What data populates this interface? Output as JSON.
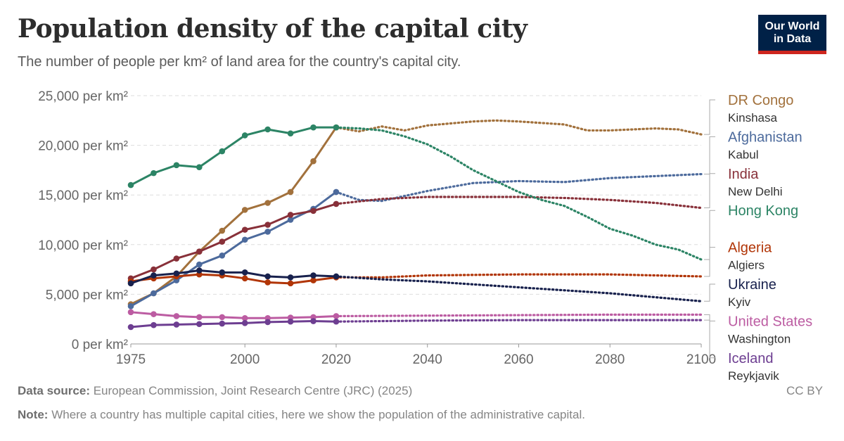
{
  "header": {
    "title": "Population density of the capital city",
    "subtitle": "The number of people per km² of land area for the country's capital city.",
    "logo_line1": "Our World",
    "logo_line2": "in Data"
  },
  "footer": {
    "source_label": "Data source:",
    "source_text": "European Commission, Joint Research Centre (JRC) (2025)",
    "note_label": "Note:",
    "note_text": "Where a country has multiple capital cities, here we show the population of the administrative capital.",
    "license": "CC BY"
  },
  "chart_data": {
    "type": "line",
    "title": "Population density of the capital city",
    "subtitle": "The number of people per km² of land area for the country's capital city.",
    "x_ticks": [
      "1975",
      "2000",
      "2020",
      "2040",
      "2060",
      "2080",
      "2100"
    ],
    "y_ticks": [
      "0 per km²",
      "5,000 per km²",
      "10,000 per km²",
      "15,000 per km²",
      "20,000 per km²",
      "25,000 per km²"
    ],
    "xlim": [
      1975,
      2100
    ],
    "ylim": [
      0,
      25000
    ],
    "grid": "horizontal dashed",
    "legend": "right, labels at line ends",
    "projection_start": 2020,
    "series": [
      {
        "name": "DR Congo",
        "city": "Kinshasa",
        "color": "#a2713c",
        "historical": [
          [
            1975,
            4000
          ],
          [
            1980,
            5100
          ],
          [
            1985,
            6800
          ],
          [
            1990,
            9300
          ],
          [
            1995,
            11400
          ],
          [
            2000,
            13500
          ],
          [
            2005,
            14200
          ],
          [
            2010,
            15300
          ],
          [
            2015,
            18400
          ],
          [
            2020,
            21800
          ]
        ],
        "projected": [
          [
            2020,
            21800
          ],
          [
            2025,
            21400
          ],
          [
            2030,
            21900
          ],
          [
            2035,
            21500
          ],
          [
            2040,
            22000
          ],
          [
            2050,
            22400
          ],
          [
            2055,
            22500
          ],
          [
            2060,
            22400
          ],
          [
            2070,
            22100
          ],
          [
            2075,
            21500
          ],
          [
            2080,
            21500
          ],
          [
            2090,
            21700
          ],
          [
            2095,
            21600
          ],
          [
            2100,
            21100
          ]
        ]
      },
      {
        "name": "Afghanistan",
        "city": "Kabul",
        "color": "#4c6a9c",
        "historical": [
          [
            1975,
            3800
          ],
          [
            1980,
            5100
          ],
          [
            1985,
            6400
          ],
          [
            1990,
            8000
          ],
          [
            1995,
            8900
          ],
          [
            2000,
            10500
          ],
          [
            2005,
            11300
          ],
          [
            2010,
            12500
          ],
          [
            2015,
            13600
          ],
          [
            2020,
            15300
          ]
        ],
        "projected": [
          [
            2020,
            15300
          ],
          [
            2025,
            14500
          ],
          [
            2030,
            14400
          ],
          [
            2035,
            14900
          ],
          [
            2040,
            15400
          ],
          [
            2050,
            16200
          ],
          [
            2060,
            16400
          ],
          [
            2070,
            16300
          ],
          [
            2080,
            16700
          ],
          [
            2090,
            16900
          ],
          [
            2100,
            17100
          ]
        ]
      },
      {
        "name": "India",
        "city": "New Delhi",
        "color": "#883039",
        "historical": [
          [
            1975,
            6600
          ],
          [
            1980,
            7500
          ],
          [
            1985,
            8600
          ],
          [
            1990,
            9300
          ],
          [
            1995,
            10300
          ],
          [
            2000,
            11500
          ],
          [
            2005,
            12000
          ],
          [
            2010,
            13000
          ],
          [
            2015,
            13400
          ],
          [
            2020,
            14100
          ]
        ],
        "projected": [
          [
            2020,
            14100
          ],
          [
            2030,
            14600
          ],
          [
            2040,
            14800
          ],
          [
            2060,
            14800
          ],
          [
            2070,
            14700
          ],
          [
            2080,
            14500
          ],
          [
            2090,
            14200
          ],
          [
            2100,
            13700
          ]
        ]
      },
      {
        "name": "Hong Kong",
        "city": "",
        "color": "#2c8465",
        "historical": [
          [
            1975,
            16000
          ],
          [
            1980,
            17200
          ],
          [
            1985,
            18000
          ],
          [
            1990,
            17800
          ],
          [
            1995,
            19400
          ],
          [
            2000,
            21000
          ],
          [
            2005,
            21600
          ],
          [
            2010,
            21200
          ],
          [
            2015,
            21800
          ],
          [
            2020,
            21800
          ]
        ],
        "projected": [
          [
            2020,
            21800
          ],
          [
            2025,
            21700
          ],
          [
            2030,
            21500
          ],
          [
            2035,
            20900
          ],
          [
            2040,
            20100
          ],
          [
            2045,
            18900
          ],
          [
            2050,
            17500
          ],
          [
            2055,
            16400
          ],
          [
            2060,
            15300
          ],
          [
            2065,
            14500
          ],
          [
            2070,
            13900
          ],
          [
            2075,
            12800
          ],
          [
            2080,
            11600
          ],
          [
            2085,
            10900
          ],
          [
            2090,
            10000
          ],
          [
            2095,
            9500
          ],
          [
            2100,
            8500
          ]
        ]
      },
      {
        "name": "Algeria",
        "city": "Algiers",
        "color": "#b13507",
        "historical": [
          [
            1975,
            6300
          ],
          [
            1980,
            6600
          ],
          [
            1985,
            6800
          ],
          [
            1990,
            7000
          ],
          [
            1995,
            6900
          ],
          [
            2000,
            6600
          ],
          [
            2005,
            6200
          ],
          [
            2010,
            6100
          ],
          [
            2015,
            6400
          ],
          [
            2020,
            6700
          ]
        ],
        "projected": [
          [
            2020,
            6700
          ],
          [
            2030,
            6700
          ],
          [
            2040,
            6900
          ],
          [
            2060,
            7000
          ],
          [
            2080,
            7000
          ],
          [
            2090,
            6900
          ],
          [
            2100,
            6800
          ]
        ]
      },
      {
        "name": "Ukraine",
        "city": "Kyiv",
        "color": "#18214d",
        "historical": [
          [
            1975,
            6100
          ],
          [
            1980,
            6900
          ],
          [
            1985,
            7100
          ],
          [
            1990,
            7400
          ],
          [
            1995,
            7200
          ],
          [
            2000,
            7200
          ],
          [
            2005,
            6800
          ],
          [
            2010,
            6700
          ],
          [
            2015,
            6900
          ],
          [
            2020,
            6800
          ]
        ],
        "projected": [
          [
            2020,
            6800
          ],
          [
            2030,
            6500
          ],
          [
            2040,
            6300
          ],
          [
            2050,
            6000
          ],
          [
            2060,
            5700
          ],
          [
            2070,
            5400
          ],
          [
            2080,
            5100
          ],
          [
            2090,
            4700
          ],
          [
            2100,
            4300
          ]
        ]
      },
      {
        "name": "United States",
        "city": "Washington",
        "color": "#bc5ca2",
        "historical": [
          [
            1975,
            3200
          ],
          [
            1980,
            3000
          ],
          [
            1985,
            2800
          ],
          [
            1990,
            2700
          ],
          [
            1995,
            2700
          ],
          [
            2000,
            2600
          ],
          [
            2005,
            2600
          ],
          [
            2010,
            2650
          ],
          [
            2015,
            2700
          ],
          [
            2020,
            2800
          ]
        ],
        "projected": [
          [
            2020,
            2800
          ],
          [
            2040,
            2850
          ],
          [
            2060,
            2900
          ],
          [
            2080,
            2950
          ],
          [
            2100,
            2950
          ]
        ]
      },
      {
        "name": "Iceland",
        "city": "Reykjavik",
        "color": "#6d3e91",
        "historical": [
          [
            1975,
            1700
          ],
          [
            1980,
            1900
          ],
          [
            1985,
            1950
          ],
          [
            1990,
            2000
          ],
          [
            1995,
            2050
          ],
          [
            2000,
            2100
          ],
          [
            2005,
            2200
          ],
          [
            2010,
            2250
          ],
          [
            2015,
            2300
          ],
          [
            2020,
            2250
          ]
        ],
        "projected": [
          [
            2020,
            2250
          ],
          [
            2040,
            2350
          ],
          [
            2060,
            2400
          ],
          [
            2080,
            2400
          ],
          [
            2100,
            2400
          ]
        ]
      }
    ]
  }
}
